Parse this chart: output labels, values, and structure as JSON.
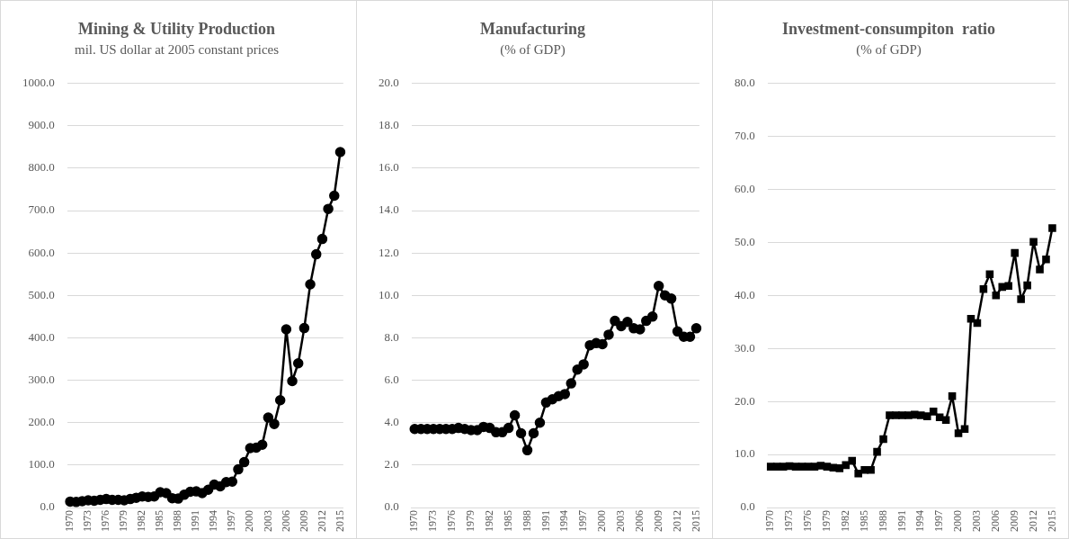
{
  "chart_data": [
    {
      "type": "line",
      "title": "Mining & Utility Production",
      "subtitle": "mil. US dollar at 2005 constant prices",
      "categories": [
        "1970",
        null,
        null,
        "1973",
        null,
        null,
        "1976",
        null,
        null,
        "1979",
        null,
        null,
        "1982",
        null,
        null,
        "1985",
        null,
        null,
        "1988",
        null,
        null,
        "1991",
        null,
        null,
        "1994",
        null,
        null,
        "1997",
        null,
        null,
        "2000",
        null,
        null,
        "2003",
        null,
        null,
        "2006",
        null,
        null,
        "2009",
        null,
        null,
        "2012",
        null,
        null,
        "2015"
      ],
      "series": [
        {
          "color": "#000000",
          "values": [
            14,
            13,
            15,
            17,
            16,
            18,
            20,
            18,
            18,
            17,
            20,
            23,
            26,
            25,
            26,
            36,
            34,
            22,
            21,
            30,
            37,
            38,
            34,
            42,
            54,
            50,
            60,
            61,
            90,
            107,
            140,
            141,
            148,
            212,
            197,
            253,
            420,
            298,
            340,
            423,
            526,
            597,
            633,
            704,
            735,
            838
          ]
        }
      ],
      "ylim": [
        0,
        1000
      ],
      "yticks": [
        {
          "value": 0,
          "label": "0.0"
        },
        {
          "value": 100,
          "label": "100.0"
        },
        {
          "value": 200,
          "label": "200.0"
        },
        {
          "value": 300,
          "label": "300.0"
        },
        {
          "value": 400,
          "label": "400.0"
        },
        {
          "value": 500,
          "label": "500.0"
        },
        {
          "value": 600,
          "label": "600.0"
        },
        {
          "value": 700,
          "label": "700.0"
        },
        {
          "value": 800,
          "label": "800.0"
        },
        {
          "value": 900,
          "label": "900.0"
        },
        {
          "value": 1000,
          "label": "1000.0"
        }
      ],
      "grid": "y",
      "marker": "circle",
      "line_style": "solid"
    },
    {
      "type": "line",
      "title": "Manufacturing",
      "subtitle": "(% of GDP)",
      "categories": [
        "1970",
        null,
        null,
        "1973",
        null,
        null,
        "1976",
        null,
        null,
        "1979",
        null,
        null,
        "1982",
        null,
        null,
        "1985",
        null,
        null,
        "1988",
        null,
        null,
        "1991",
        null,
        null,
        "1994",
        null,
        null,
        "1997",
        null,
        null,
        "2000",
        null,
        null,
        "2003",
        null,
        null,
        "2006",
        null,
        null,
        "2009",
        null,
        null,
        "2012",
        null,
        null,
        "2015"
      ],
      "series": [
        {
          "color": "#000000",
          "values": [
            3.7,
            3.7,
            3.7,
            3.7,
            3.7,
            3.7,
            3.7,
            3.75,
            3.7,
            3.65,
            3.65,
            3.8,
            3.75,
            3.55,
            3.55,
            3.75,
            4.35,
            3.5,
            2.7,
            3.5,
            4.0,
            4.95,
            5.1,
            5.25,
            5.35,
            5.85,
            6.5,
            6.75,
            7.65,
            7.75,
            7.7,
            8.15,
            8.8,
            8.55,
            8.75,
            8.45,
            8.4,
            8.8,
            9.0,
            10.45,
            10.0,
            9.85,
            8.3,
            8.05,
            8.05,
            8.45
          ]
        }
      ],
      "ylim": [
        0,
        20
      ],
      "yticks": [
        {
          "value": 0,
          "label": "0.0"
        },
        {
          "value": 2,
          "label": "2.0"
        },
        {
          "value": 4,
          "label": "4.0"
        },
        {
          "value": 6,
          "label": "6.0"
        },
        {
          "value": 8,
          "label": "8.0"
        },
        {
          "value": 10,
          "label": "10.0"
        },
        {
          "value": 12,
          "label": "12.0"
        },
        {
          "value": 14,
          "label": "14.0"
        },
        {
          "value": 16,
          "label": "16.0"
        },
        {
          "value": 18,
          "label": "18.0"
        },
        {
          "value": 20,
          "label": "20.0"
        }
      ],
      "grid": "y",
      "marker": "circle",
      "line_style": "solid"
    },
    {
      "type": "line",
      "title": "Investment-consumpiton  ratio",
      "subtitle": "(% of GDP)",
      "categories": [
        "1970",
        null,
        null,
        "1973",
        null,
        null,
        "1976",
        null,
        null,
        "1979",
        null,
        null,
        "1982",
        null,
        null,
        "1985",
        null,
        null,
        "1988",
        null,
        null,
        "1991",
        null,
        null,
        "1994",
        null,
        null,
        "1997",
        null,
        null,
        "2000",
        null,
        null,
        "2003",
        null,
        null,
        "2006",
        null,
        null,
        "2009",
        null,
        null,
        "2012",
        null,
        null,
        "2015"
      ],
      "series": [
        {
          "color": "#000000",
          "values": [
            7.7,
            7.7,
            7.7,
            7.8,
            7.7,
            7.7,
            7.7,
            7.7,
            7.9,
            7.7,
            7.5,
            7.4,
            8.0,
            8.8,
            6.4,
            7.1,
            7.1,
            10.5,
            12.9,
            17.4,
            17.4,
            17.4,
            17.4,
            17.5,
            17.4,
            17.2,
            18.1,
            17.0,
            16.5,
            21.0,
            14.0,
            14.8,
            35.6,
            34.8,
            41.2,
            44.0,
            40.0,
            41.6,
            41.8,
            48.0,
            39.3,
            41.9,
            50.1,
            44.9,
            46.8,
            52.7
          ]
        }
      ],
      "ylim": [
        0,
        80
      ],
      "yticks": [
        {
          "value": 0,
          "label": "0.0"
        },
        {
          "value": 10,
          "label": "10.0"
        },
        {
          "value": 20,
          "label": "20.0"
        },
        {
          "value": 30,
          "label": "30.0"
        },
        {
          "value": 40,
          "label": "40.0"
        },
        {
          "value": 50,
          "label": "50.0"
        },
        {
          "value": 60,
          "label": "60.0"
        },
        {
          "value": 70,
          "label": "70.0"
        },
        {
          "value": 80,
          "label": "80.0"
        }
      ],
      "grid": "y",
      "marker": "square",
      "line_style": "solid"
    }
  ]
}
